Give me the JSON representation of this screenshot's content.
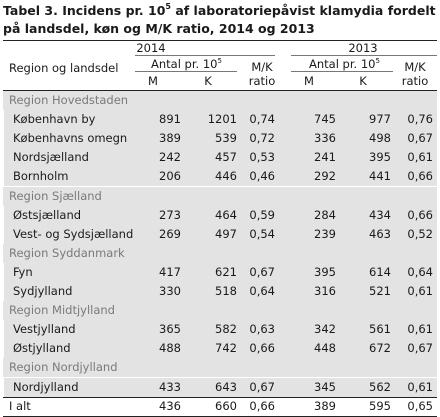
{
  "title": {
    "prefix": "Tabel 3. Incidens pr. 10",
    "sup": "5",
    "suffix": " af laboratoriepåvist klamydia fordelt på landsdel, køn og M/K ratio, 2014 og 2013"
  },
  "header": {
    "region_label": "Region og landsdel",
    "year_2014": "2014",
    "year_2013": "2013",
    "antal_prefix": "Antal pr. 10",
    "antal_sup": "5",
    "mk_line1": "M/K",
    "mk_line2": "ratio",
    "m": "M",
    "k": "K"
  },
  "groups": [
    {
      "name": "Region Hovedstaden",
      "rows": [
        {
          "name": "København by",
          "m14": "891",
          "k14": "1201",
          "r14": "0,74",
          "m13": "745",
          "k13": "977",
          "r13": "0,76"
        },
        {
          "name": "Københavns omegn",
          "m14": "389",
          "k14": "539",
          "r14": "0,72",
          "m13": "336",
          "k13": "498",
          "r13": "0,67"
        },
        {
          "name": "Nordsjælland",
          "m14": "242",
          "k14": "457",
          "r14": "0,53",
          "m13": "241",
          "k13": "395",
          "r13": "0,61"
        },
        {
          "name": "Bornholm",
          "m14": "206",
          "k14": "446",
          "r14": "0,46",
          "m13": "292",
          "k13": "441",
          "r13": "0,66"
        }
      ]
    },
    {
      "name": "Region Sjælland",
      "rows": [
        {
          "name": "Østsjælland",
          "m14": "273",
          "k14": "464",
          "r14": "0,59",
          "m13": "284",
          "k13": "434",
          "r13": "0,66"
        },
        {
          "name": "Vest- og Sydsjælland",
          "m14": "269",
          "k14": "497",
          "r14": "0,54",
          "m13": "239",
          "k13": "463",
          "r13": "0,52"
        }
      ]
    },
    {
      "name": "Region Syddanmark",
      "rows": [
        {
          "name": "Fyn",
          "m14": "417",
          "k14": "621",
          "r14": "0,67",
          "m13": "395",
          "k13": "614",
          "r13": "0,64"
        },
        {
          "name": "Sydjylland",
          "m14": "330",
          "k14": "518",
          "r14": "0,64",
          "m13": "316",
          "k13": "521",
          "r13": "0,61"
        }
      ]
    },
    {
      "name": "Region Midtjylland",
      "rows": [
        {
          "name": "Vestjylland",
          "m14": "365",
          "k14": "582",
          "r14": "0,63",
          "m13": "342",
          "k13": "561",
          "r13": "0,61"
        },
        {
          "name": "Østjylland",
          "m14": "488",
          "k14": "742",
          "r14": "0,66",
          "m13": "448",
          "k13": "672",
          "r13": "0,67"
        }
      ]
    },
    {
      "name": "Region Nordjylland",
      "rows": [
        {
          "name": "Nordjylland",
          "m14": "433",
          "k14": "643",
          "r14": "0,67",
          "m13": "345",
          "k13": "562",
          "r13": "0,61"
        }
      ]
    }
  ],
  "total": {
    "name": "I alt",
    "m14": "436",
    "k14": "660",
    "r14": "0,66",
    "m13": "389",
    "k13": "595",
    "r13": "0,65"
  },
  "colors": {
    "shade": "#e3e3e3",
    "group_text": "#7a7a7a",
    "text": "#1a1a1a"
  }
}
